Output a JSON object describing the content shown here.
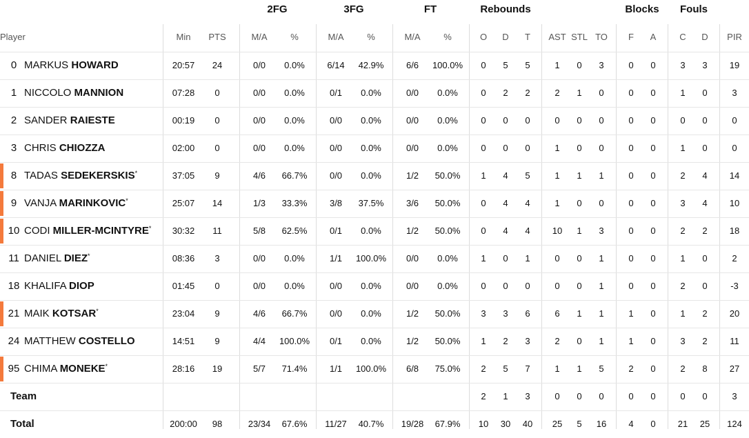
{
  "group_headers": [
    "2FG",
    "3FG",
    "FT",
    "Rebounds",
    "Blocks",
    "Fouls"
  ],
  "columns": [
    "Player",
    "Min",
    "PTS",
    "M/A",
    "%",
    "M/A",
    "%",
    "M/A",
    "%",
    "O",
    "D",
    "T",
    "AST",
    "STL",
    "TO",
    "F",
    "A",
    "C",
    "D",
    "PIR"
  ],
  "rows": [
    {
      "number": 0,
      "first": "MARKUS",
      "last": "HOWARD",
      "stats": [
        "20:57",
        24,
        "0/0",
        "0.0%",
        "6/14",
        "42.9%",
        "6/6",
        "100.0%",
        0,
        5,
        5,
        1,
        0,
        3,
        0,
        0,
        3,
        3,
        19
      ]
    },
    {
      "number": 1,
      "first": "NICCOLO",
      "last": "MANNION",
      "stats": [
        "07:28",
        0,
        "0/0",
        "0.0%",
        "0/1",
        "0.0%",
        "0/0",
        "0.0%",
        0,
        2,
        2,
        2,
        1,
        0,
        0,
        0,
        1,
        0,
        3
      ]
    },
    {
      "number": 2,
      "first": "SANDER",
      "last": "RAIESTE",
      "stats": [
        "00:19",
        0,
        "0/0",
        "0.0%",
        "0/0",
        "0.0%",
        "0/0",
        "0.0%",
        0,
        0,
        0,
        0,
        0,
        0,
        0,
        0,
        0,
        0,
        0
      ]
    },
    {
      "number": 3,
      "first": "CHRIS",
      "last": "CHIOZZA",
      "stats": [
        "02:00",
        0,
        "0/0",
        "0.0%",
        "0/0",
        "0.0%",
        "0/0",
        "0.0%",
        0,
        0,
        0,
        1,
        0,
        0,
        0,
        0,
        1,
        0,
        0
      ]
    },
    {
      "number": 8,
      "first": "TADAS",
      "last": "SEDEKERSKIS",
      "mark": "*",
      "accent": true,
      "stats": [
        "37:05",
        9,
        "4/6",
        "66.7%",
        "0/0",
        "0.0%",
        "1/2",
        "50.0%",
        1,
        4,
        5,
        1,
        1,
        1,
        0,
        0,
        2,
        4,
        14
      ]
    },
    {
      "number": 9,
      "first": "VANJA",
      "last": "MARINKOVIC",
      "mark": "*",
      "accent": true,
      "stats": [
        "25:07",
        14,
        "1/3",
        "33.3%",
        "3/8",
        "37.5%",
        "3/6",
        "50.0%",
        0,
        4,
        4,
        1,
        0,
        0,
        0,
        0,
        3,
        4,
        10
      ]
    },
    {
      "number": 10,
      "first": "CODI",
      "last": "MILLER-MCINTYRE",
      "mark": "*",
      "accent": true,
      "stats": [
        "30:32",
        11,
        "5/8",
        "62.5%",
        "0/1",
        "0.0%",
        "1/2",
        "50.0%",
        0,
        4,
        4,
        10,
        1,
        3,
        0,
        0,
        2,
        2,
        18
      ]
    },
    {
      "number": 11,
      "first": "DANIEL",
      "last": "DIEZ",
      "mark": "*",
      "stats": [
        "08:36",
        3,
        "0/0",
        "0.0%",
        "1/1",
        "100.0%",
        "0/0",
        "0.0%",
        1,
        0,
        1,
        0,
        0,
        1,
        0,
        0,
        1,
        0,
        2
      ]
    },
    {
      "number": 18,
      "first": "KHALIFA",
      "last": "DIOP",
      "stats": [
        "01:45",
        0,
        "0/0",
        "0.0%",
        "0/0",
        "0.0%",
        "0/0",
        "0.0%",
        0,
        0,
        0,
        0,
        0,
        1,
        0,
        0,
        2,
        0,
        -3
      ]
    },
    {
      "number": 21,
      "first": "MAIK",
      "last": "KOTSAR",
      "mark": "*",
      "accent": true,
      "stats": [
        "23:04",
        9,
        "4/6",
        "66.7%",
        "0/0",
        "0.0%",
        "1/2",
        "50.0%",
        3,
        3,
        6,
        6,
        1,
        1,
        1,
        0,
        1,
        2,
        20
      ]
    },
    {
      "number": 24,
      "first": "MATTHEW",
      "last": "COSTELLO",
      "stats": [
        "14:51",
        9,
        "4/4",
        "100.0%",
        "0/1",
        "0.0%",
        "1/2",
        "50.0%",
        1,
        2,
        3,
        2,
        0,
        1,
        1,
        0,
        3,
        2,
        11
      ]
    },
    {
      "number": 95,
      "first": "CHIMA",
      "last": "MONEKE",
      "mark": "*",
      "accent": true,
      "stats": [
        "28:16",
        19,
        "5/7",
        "71.4%",
        "1/1",
        "100.0%",
        "6/8",
        "75.0%",
        2,
        5,
        7,
        1,
        1,
        5,
        2,
        0,
        2,
        8,
        27
      ]
    },
    {
      "label": "Team",
      "stats": [
        null,
        null,
        null,
        null,
        null,
        null,
        null,
        null,
        2,
        1,
        3,
        0,
        0,
        0,
        0,
        0,
        0,
        0,
        3
      ]
    },
    {
      "label": "Total",
      "stats": [
        "200:00",
        98,
        "23/34",
        "67.6%",
        "11/27",
        "40.7%",
        "19/28",
        "67.9%",
        10,
        30,
        40,
        25,
        5,
        16,
        4,
        0,
        21,
        25,
        124
      ]
    }
  ]
}
